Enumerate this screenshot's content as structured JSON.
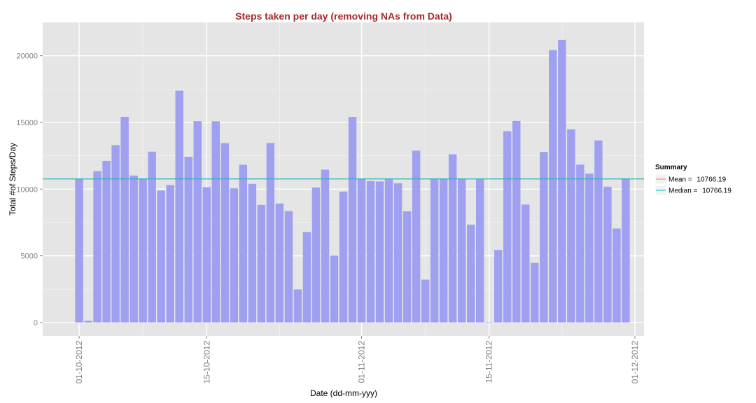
{
  "chart_data": {
    "type": "bar",
    "title": "Steps taken per day (removing NAs from Data)",
    "xlabel": "Date (dd-mm-yyy)",
    "ylabel": "Total #of Steps/Day",
    "ylim": [
      -1000,
      22500
    ],
    "yticks": [
      0,
      5000,
      10000,
      15000,
      20000
    ],
    "ytick_labels": [
      "0",
      "5000",
      "10000",
      "15000",
      "20000"
    ],
    "xlim": [
      "2012-09-27",
      "2012-12-02"
    ],
    "xticks": [
      "2012-10-01",
      "2012-10-15",
      "2012-11-01",
      "2012-11-15",
      "2012-12-01"
    ],
    "xtick_labels": [
      "01-10-2012",
      "15-10-2012",
      "01-11-2012",
      "15-11-2012",
      "01-12-2012"
    ],
    "x_minor_gridlines": [
      "2012-10-08",
      "2012-10-23",
      "2012-11-08",
      "2012-11-23"
    ],
    "grid": true,
    "legend_position": "right",
    "bar_color": "#a0a0f0",
    "x": [
      "2012-10-01",
      "2012-10-02",
      "2012-10-03",
      "2012-10-04",
      "2012-10-05",
      "2012-10-06",
      "2012-10-07",
      "2012-10-08",
      "2012-10-09",
      "2012-10-10",
      "2012-10-11",
      "2012-10-12",
      "2012-10-13",
      "2012-10-14",
      "2012-10-15",
      "2012-10-16",
      "2012-10-17",
      "2012-10-18",
      "2012-10-19",
      "2012-10-20",
      "2012-10-21",
      "2012-10-22",
      "2012-10-23",
      "2012-10-24",
      "2012-10-25",
      "2012-10-26",
      "2012-10-27",
      "2012-10-28",
      "2012-10-29",
      "2012-10-30",
      "2012-10-31",
      "2012-11-01",
      "2012-11-02",
      "2012-11-03",
      "2012-11-04",
      "2012-11-05",
      "2012-11-06",
      "2012-11-07",
      "2012-11-08",
      "2012-11-09",
      "2012-11-10",
      "2012-11-11",
      "2012-11-12",
      "2012-11-13",
      "2012-11-14",
      "2012-11-15",
      "2012-11-16",
      "2012-11-17",
      "2012-11-18",
      "2012-11-19",
      "2012-11-20",
      "2012-11-21",
      "2012-11-22",
      "2012-11-23",
      "2012-11-24",
      "2012-11-25",
      "2012-11-26",
      "2012-11-27",
      "2012-11-28",
      "2012-11-29",
      "2012-11-30"
    ],
    "values": [
      10766.19,
      126,
      11352,
      12116,
      13294,
      15420,
      11015,
      10766.19,
      12811,
      9900,
      10304,
      17382,
      12426,
      15098,
      10139,
      15084,
      13452,
      10056,
      11829,
      10395,
      8821,
      13460,
      8918,
      8355,
      2492,
      6778,
      10119,
      11458,
      5018,
      9819,
      15414,
      10766.19,
      10600,
      10571,
      10766.19,
      10439,
      8334,
      12883,
      3219,
      10766.19,
      10766.19,
      12608,
      10765,
      7336,
      10766.19,
      41,
      5441,
      14339,
      15110,
      8841,
      4472,
      12787,
      20427,
      21194,
      14478,
      11834,
      11162,
      13646,
      10183,
      7047,
      10766.19
    ],
    "lines": [
      {
        "name": "Mean = ",
        "value": 10766.19,
        "value_label": "10766.19",
        "color": "#f8766d"
      },
      {
        "name": "Median = ",
        "value": 10766.19,
        "value_label": "10766.19",
        "color": "#00bfc4"
      }
    ],
    "legend_title": "Summary"
  }
}
